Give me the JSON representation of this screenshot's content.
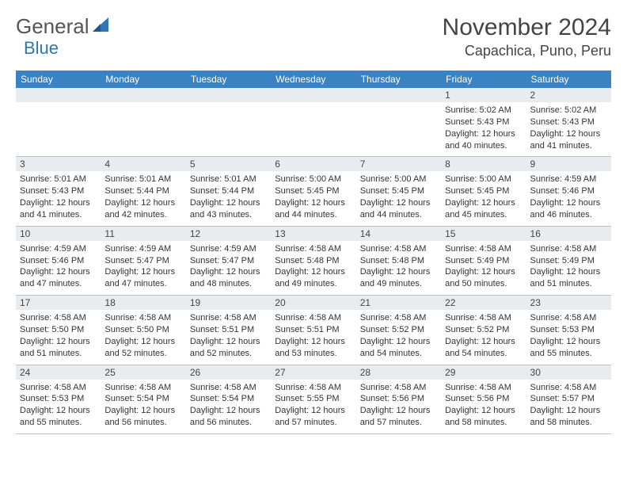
{
  "logo": {
    "text_gray": "General",
    "text_blue": "Blue"
  },
  "title": "November 2024",
  "location": "Capachica, Puno, Peru",
  "header_color": "#3b82c4",
  "daynum_bg": "#e8ecef",
  "border_color": "#b8c2cc",
  "weekdays": [
    "Sunday",
    "Monday",
    "Tuesday",
    "Wednesday",
    "Thursday",
    "Friday",
    "Saturday"
  ],
  "weeks": [
    [
      {
        "n": "",
        "sr": "",
        "ss": "",
        "dl": ""
      },
      {
        "n": "",
        "sr": "",
        "ss": "",
        "dl": ""
      },
      {
        "n": "",
        "sr": "",
        "ss": "",
        "dl": ""
      },
      {
        "n": "",
        "sr": "",
        "ss": "",
        "dl": ""
      },
      {
        "n": "",
        "sr": "",
        "ss": "",
        "dl": ""
      },
      {
        "n": "1",
        "sr": "Sunrise: 5:02 AM",
        "ss": "Sunset: 5:43 PM",
        "dl": "Daylight: 12 hours and 40 minutes."
      },
      {
        "n": "2",
        "sr": "Sunrise: 5:02 AM",
        "ss": "Sunset: 5:43 PM",
        "dl": "Daylight: 12 hours and 41 minutes."
      }
    ],
    [
      {
        "n": "3",
        "sr": "Sunrise: 5:01 AM",
        "ss": "Sunset: 5:43 PM",
        "dl": "Daylight: 12 hours and 41 minutes."
      },
      {
        "n": "4",
        "sr": "Sunrise: 5:01 AM",
        "ss": "Sunset: 5:44 PM",
        "dl": "Daylight: 12 hours and 42 minutes."
      },
      {
        "n": "5",
        "sr": "Sunrise: 5:01 AM",
        "ss": "Sunset: 5:44 PM",
        "dl": "Daylight: 12 hours and 43 minutes."
      },
      {
        "n": "6",
        "sr": "Sunrise: 5:00 AM",
        "ss": "Sunset: 5:45 PM",
        "dl": "Daylight: 12 hours and 44 minutes."
      },
      {
        "n": "7",
        "sr": "Sunrise: 5:00 AM",
        "ss": "Sunset: 5:45 PM",
        "dl": "Daylight: 12 hours and 44 minutes."
      },
      {
        "n": "8",
        "sr": "Sunrise: 5:00 AM",
        "ss": "Sunset: 5:45 PM",
        "dl": "Daylight: 12 hours and 45 minutes."
      },
      {
        "n": "9",
        "sr": "Sunrise: 4:59 AM",
        "ss": "Sunset: 5:46 PM",
        "dl": "Daylight: 12 hours and 46 minutes."
      }
    ],
    [
      {
        "n": "10",
        "sr": "Sunrise: 4:59 AM",
        "ss": "Sunset: 5:46 PM",
        "dl": "Daylight: 12 hours and 47 minutes."
      },
      {
        "n": "11",
        "sr": "Sunrise: 4:59 AM",
        "ss": "Sunset: 5:47 PM",
        "dl": "Daylight: 12 hours and 47 minutes."
      },
      {
        "n": "12",
        "sr": "Sunrise: 4:59 AM",
        "ss": "Sunset: 5:47 PM",
        "dl": "Daylight: 12 hours and 48 minutes."
      },
      {
        "n": "13",
        "sr": "Sunrise: 4:58 AM",
        "ss": "Sunset: 5:48 PM",
        "dl": "Daylight: 12 hours and 49 minutes."
      },
      {
        "n": "14",
        "sr": "Sunrise: 4:58 AM",
        "ss": "Sunset: 5:48 PM",
        "dl": "Daylight: 12 hours and 49 minutes."
      },
      {
        "n": "15",
        "sr": "Sunrise: 4:58 AM",
        "ss": "Sunset: 5:49 PM",
        "dl": "Daylight: 12 hours and 50 minutes."
      },
      {
        "n": "16",
        "sr": "Sunrise: 4:58 AM",
        "ss": "Sunset: 5:49 PM",
        "dl": "Daylight: 12 hours and 51 minutes."
      }
    ],
    [
      {
        "n": "17",
        "sr": "Sunrise: 4:58 AM",
        "ss": "Sunset: 5:50 PM",
        "dl": "Daylight: 12 hours and 51 minutes."
      },
      {
        "n": "18",
        "sr": "Sunrise: 4:58 AM",
        "ss": "Sunset: 5:50 PM",
        "dl": "Daylight: 12 hours and 52 minutes."
      },
      {
        "n": "19",
        "sr": "Sunrise: 4:58 AM",
        "ss": "Sunset: 5:51 PM",
        "dl": "Daylight: 12 hours and 52 minutes."
      },
      {
        "n": "20",
        "sr": "Sunrise: 4:58 AM",
        "ss": "Sunset: 5:51 PM",
        "dl": "Daylight: 12 hours and 53 minutes."
      },
      {
        "n": "21",
        "sr": "Sunrise: 4:58 AM",
        "ss": "Sunset: 5:52 PM",
        "dl": "Daylight: 12 hours and 54 minutes."
      },
      {
        "n": "22",
        "sr": "Sunrise: 4:58 AM",
        "ss": "Sunset: 5:52 PM",
        "dl": "Daylight: 12 hours and 54 minutes."
      },
      {
        "n": "23",
        "sr": "Sunrise: 4:58 AM",
        "ss": "Sunset: 5:53 PM",
        "dl": "Daylight: 12 hours and 55 minutes."
      }
    ],
    [
      {
        "n": "24",
        "sr": "Sunrise: 4:58 AM",
        "ss": "Sunset: 5:53 PM",
        "dl": "Daylight: 12 hours and 55 minutes."
      },
      {
        "n": "25",
        "sr": "Sunrise: 4:58 AM",
        "ss": "Sunset: 5:54 PM",
        "dl": "Daylight: 12 hours and 56 minutes."
      },
      {
        "n": "26",
        "sr": "Sunrise: 4:58 AM",
        "ss": "Sunset: 5:54 PM",
        "dl": "Daylight: 12 hours and 56 minutes."
      },
      {
        "n": "27",
        "sr": "Sunrise: 4:58 AM",
        "ss": "Sunset: 5:55 PM",
        "dl": "Daylight: 12 hours and 57 minutes."
      },
      {
        "n": "28",
        "sr": "Sunrise: 4:58 AM",
        "ss": "Sunset: 5:56 PM",
        "dl": "Daylight: 12 hours and 57 minutes."
      },
      {
        "n": "29",
        "sr": "Sunrise: 4:58 AM",
        "ss": "Sunset: 5:56 PM",
        "dl": "Daylight: 12 hours and 58 minutes."
      },
      {
        "n": "30",
        "sr": "Sunrise: 4:58 AM",
        "ss": "Sunset: 5:57 PM",
        "dl": "Daylight: 12 hours and 58 minutes."
      }
    ]
  ]
}
